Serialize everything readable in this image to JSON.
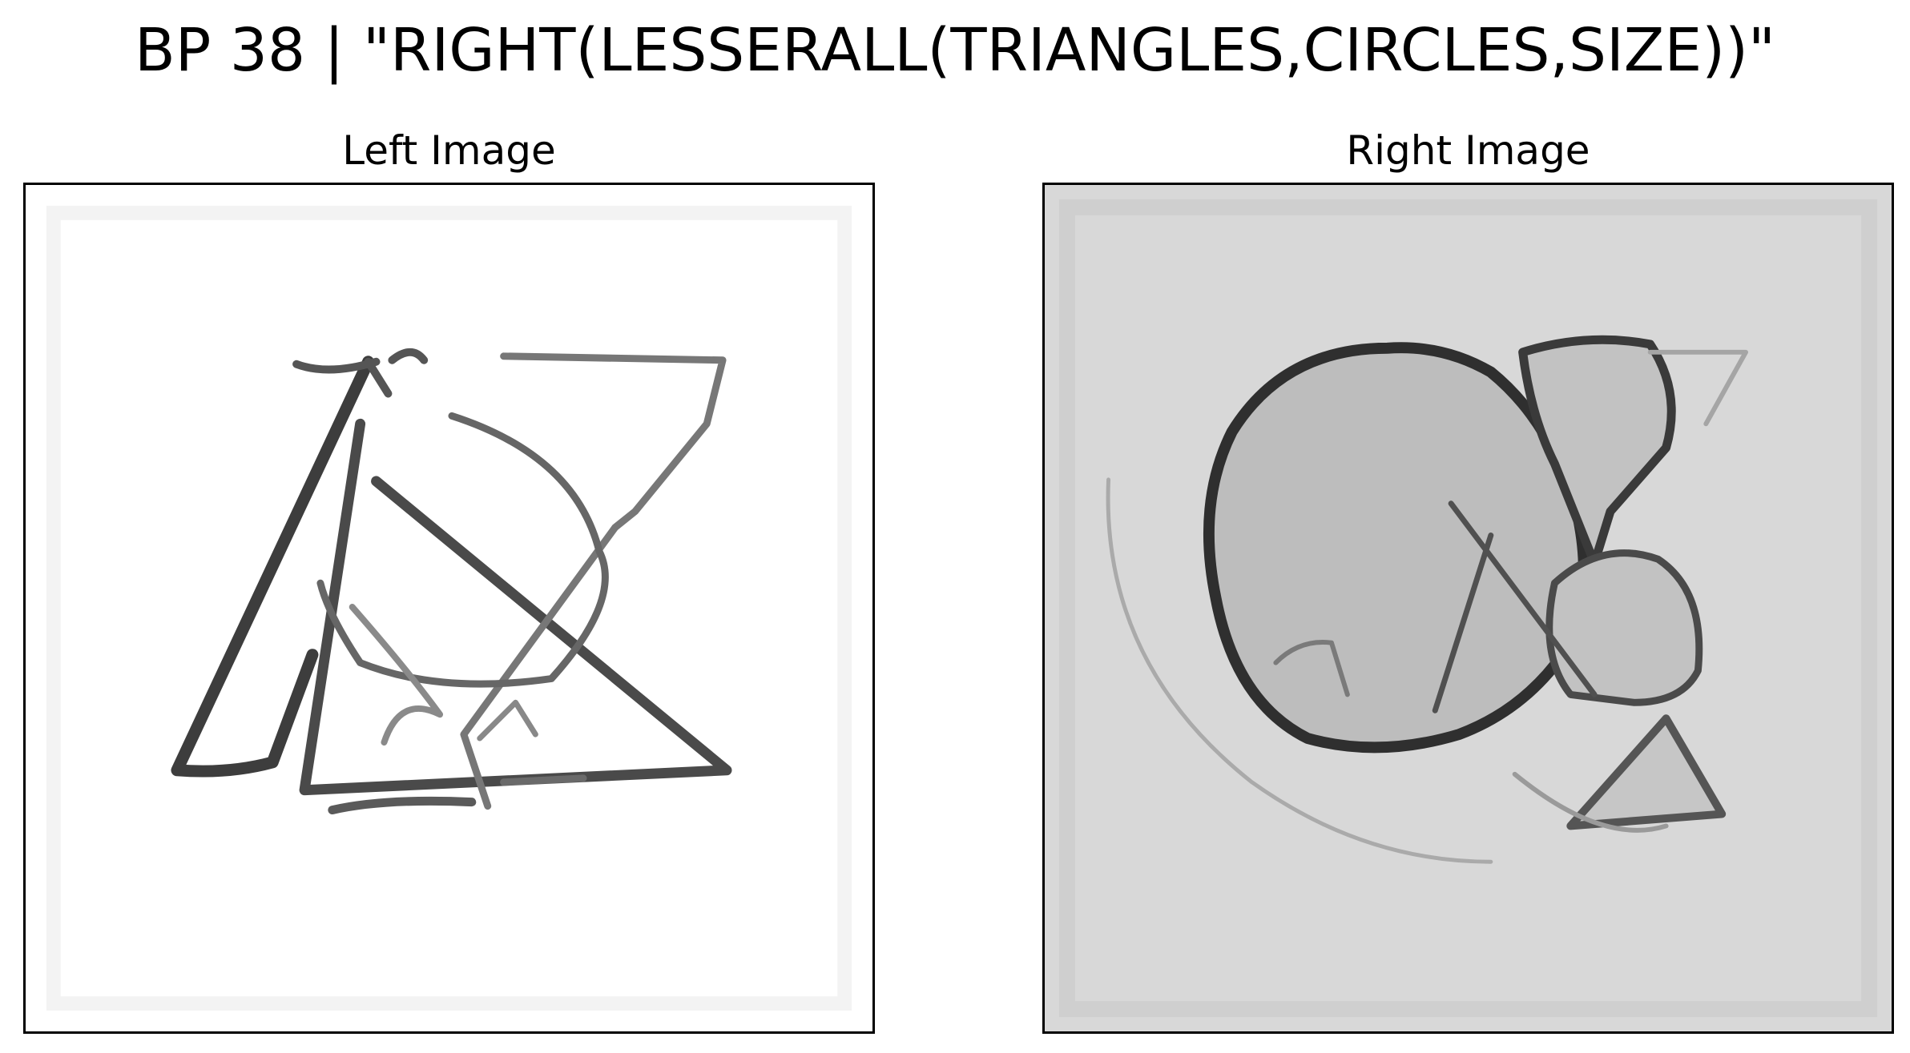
{
  "title": "BP 38 | \"RIGHT(LESSERALL(TRIANGLES,CIRCLES,SIZE))\"",
  "panels": [
    {
      "label": "Left Image",
      "background": "#ffffff",
      "ink": "#3a3a3a"
    },
    {
      "label": "Right Image",
      "background": "#d8d8d8",
      "ink": "#2e2e2e",
      "fill": "#bcbcbc"
    }
  ]
}
